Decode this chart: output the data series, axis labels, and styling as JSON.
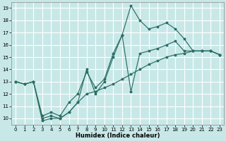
{
  "xlabel": "Humidex (Indice chaleur)",
  "background_color": "#c8e8e8",
  "grid_color": "#ffffff",
  "line_color": "#2a6e64",
  "xlim": [
    -0.5,
    23.5
  ],
  "ylim": [
    9.5,
    19.5
  ],
  "xticks": [
    0,
    1,
    2,
    3,
    4,
    5,
    6,
    7,
    8,
    9,
    10,
    11,
    12,
    13,
    14,
    15,
    16,
    17,
    18,
    19,
    20,
    21,
    22,
    23
  ],
  "yticks": [
    10,
    11,
    12,
    13,
    14,
    15,
    16,
    17,
    18,
    19
  ],
  "line1_x": [
    0,
    1,
    2,
    3,
    4,
    5,
    6,
    7,
    8,
    9,
    10,
    11,
    12,
    13,
    14,
    15,
    16,
    17,
    18,
    19,
    20,
    21,
    22,
    23
  ],
  "line1_y": [
    13.0,
    12.8,
    13.0,
    10.0,
    10.2,
    10.0,
    10.5,
    11.3,
    12.0,
    12.2,
    12.5,
    12.8,
    13.2,
    13.6,
    14.0,
    14.4,
    14.7,
    15.0,
    15.2,
    15.3,
    15.5,
    15.5,
    15.5,
    15.2
  ],
  "line2_x": [
    0,
    1,
    2,
    3,
    4,
    5,
    6,
    7,
    8,
    9,
    10,
    11,
    12,
    13,
    14,
    15,
    16,
    17,
    18,
    19,
    20,
    21,
    22,
    23
  ],
  "line2_y": [
    13.0,
    12.8,
    13.0,
    10.2,
    10.5,
    10.2,
    11.3,
    12.0,
    13.8,
    12.5,
    13.2,
    15.3,
    16.8,
    12.2,
    15.3,
    15.5,
    15.7,
    16.0,
    16.3,
    15.5,
    15.5,
    15.5,
    15.5,
    15.2
  ],
  "line3_x": [
    0,
    1,
    2,
    3,
    4,
    5,
    6,
    7,
    8,
    9,
    10,
    11,
    12,
    13,
    14,
    15,
    16,
    17,
    18,
    19,
    20,
    21,
    22,
    23
  ],
  "line3_y": [
    13.0,
    12.8,
    13.0,
    9.8,
    10.0,
    10.0,
    10.5,
    11.3,
    14.0,
    12.0,
    13.0,
    15.0,
    16.8,
    19.2,
    18.0,
    17.3,
    17.5,
    17.8,
    17.3,
    16.5,
    15.5,
    15.5,
    15.5,
    15.2
  ]
}
